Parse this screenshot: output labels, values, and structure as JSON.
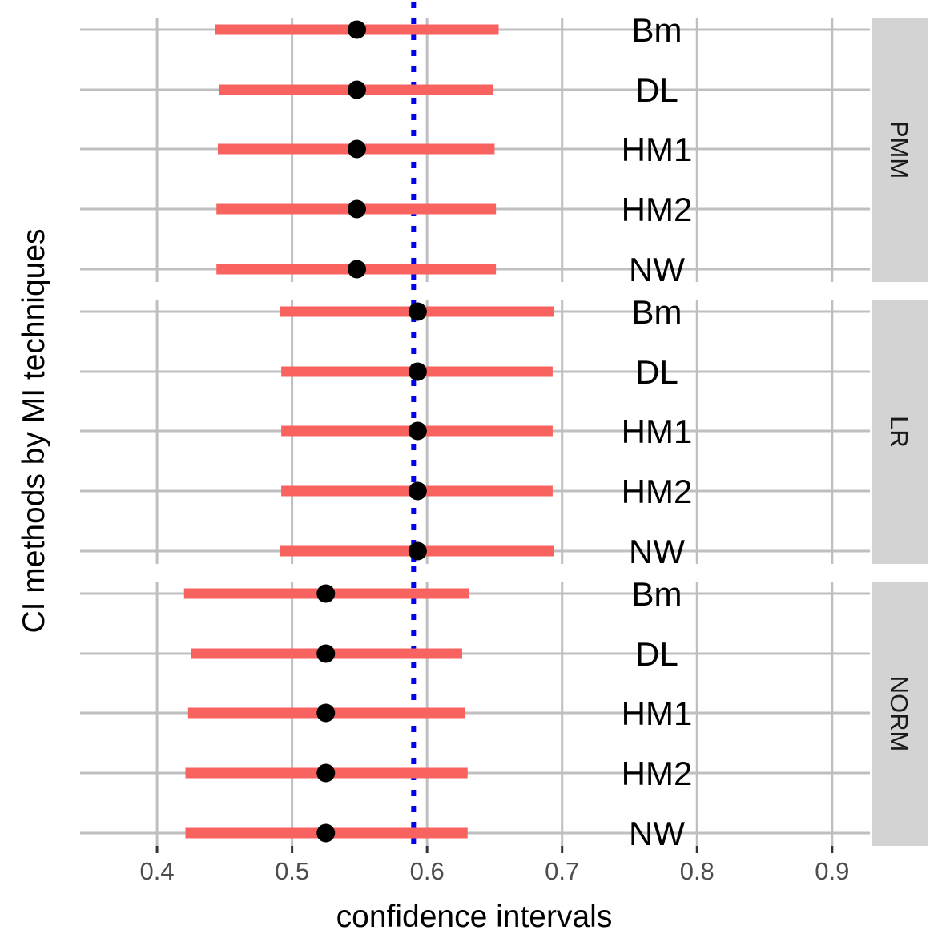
{
  "chart_data": {
    "type": "forest",
    "xlabel": "confidence intervals",
    "ylabel": "CI methods by MI techniques",
    "xlim": [
      0.343,
      0.928
    ],
    "x_ticks": [
      0.4,
      0.5,
      0.6,
      0.7,
      0.8,
      0.9
    ],
    "x_tick_labels": [
      "0.4",
      "0.5",
      "0.6",
      "0.7",
      "0.8",
      "0.9"
    ],
    "reference_line": 0.59,
    "grid": true,
    "colors": {
      "interval": "#f8625f",
      "point": "#000000",
      "reference": "#0000ee",
      "strip": "#d3d3d3"
    },
    "panels": [
      {
        "name": "PMM",
        "rows": [
          {
            "method": "Bm",
            "lower": 0.443,
            "estimate": 0.548,
            "upper": 0.653
          },
          {
            "method": "DL",
            "lower": 0.446,
            "estimate": 0.548,
            "upper": 0.649
          },
          {
            "method": "HM1",
            "lower": 0.445,
            "estimate": 0.548,
            "upper": 0.65
          },
          {
            "method": "HM2",
            "lower": 0.444,
            "estimate": 0.548,
            "upper": 0.651
          },
          {
            "method": "NW",
            "lower": 0.444,
            "estimate": 0.548,
            "upper": 0.651
          }
        ]
      },
      {
        "name": "LR",
        "rows": [
          {
            "method": "Bm",
            "lower": 0.491,
            "estimate": 0.593,
            "upper": 0.694
          },
          {
            "method": "DL",
            "lower": 0.492,
            "estimate": 0.593,
            "upper": 0.693
          },
          {
            "method": "HM1",
            "lower": 0.492,
            "estimate": 0.593,
            "upper": 0.693
          },
          {
            "method": "HM2",
            "lower": 0.492,
            "estimate": 0.593,
            "upper": 0.693
          },
          {
            "method": "NW",
            "lower": 0.491,
            "estimate": 0.593,
            "upper": 0.694
          }
        ]
      },
      {
        "name": "NORM",
        "rows": [
          {
            "method": "Bm",
            "lower": 0.42,
            "estimate": 0.525,
            "upper": 0.631
          },
          {
            "method": "DL",
            "lower": 0.425,
            "estimate": 0.525,
            "upper": 0.626
          },
          {
            "method": "HM1",
            "lower": 0.423,
            "estimate": 0.525,
            "upper": 0.628
          },
          {
            "method": "HM2",
            "lower": 0.421,
            "estimate": 0.525,
            "upper": 0.63
          },
          {
            "method": "NW",
            "lower": 0.421,
            "estimate": 0.525,
            "upper": 0.63
          }
        ]
      }
    ]
  }
}
